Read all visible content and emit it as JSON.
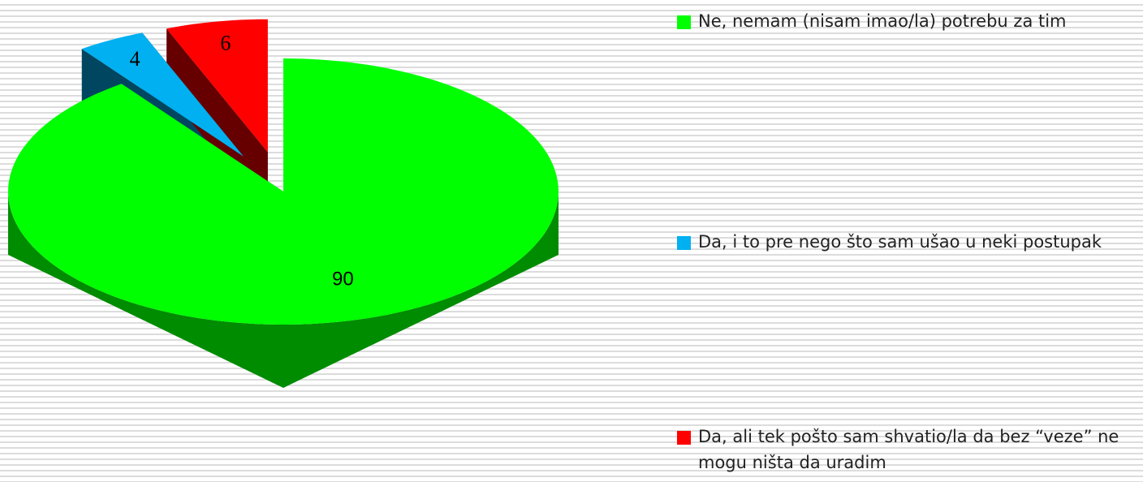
{
  "chart_data": {
    "type": "pie",
    "categories": [
      "Ne, nemam (nisam imao/la) potrebu za tim",
      "Da, i to pre nego što sam ušao u neki postupak",
      "Da, ali tek pošto sam shvatio/la da bez “veze” ne mogu ništa da uradim"
    ],
    "values": [
      90,
      4,
      6
    ],
    "colors": [
      "#00ff00",
      "#00b0f0",
      "#ff0000"
    ],
    "legend": "right"
  }
}
